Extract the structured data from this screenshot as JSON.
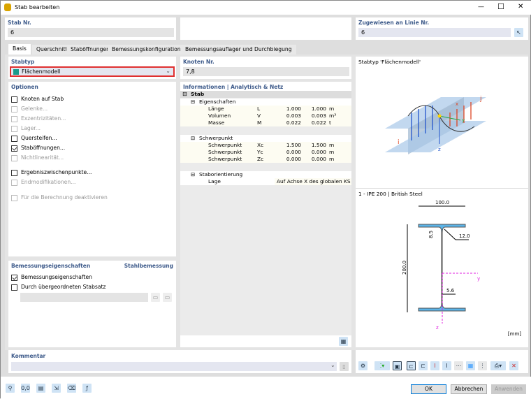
{
  "window": {
    "title": "Stab bearbeiten",
    "minimize": "—",
    "maximize": "☐",
    "close": "✕"
  },
  "stab_nr": {
    "label": "Stab Nr.",
    "value": "6"
  },
  "zugewiesen": {
    "label": "Zugewiesen an Linie Nr.",
    "value": "6"
  },
  "tabs": [
    {
      "label": "Basis"
    },
    {
      "label": "Querschnitt"
    },
    {
      "label": "Staböffnungen"
    },
    {
      "label": "Bemessungskonfigurationen"
    },
    {
      "label": "Bemessungsauflager und Durchbiegung"
    }
  ],
  "stabtyp": {
    "label": "Stabtyp",
    "value": "Flächenmodell",
    "color": "#1a9a8a",
    "highlight": "#e03030"
  },
  "knoten": {
    "label": "Knoten Nr.",
    "value": "7,8"
  },
  "optionen": {
    "label": "Optionen",
    "items": [
      {
        "label": "Knoten auf Stab",
        "checked": false,
        "enabled": true
      },
      {
        "label": "Gelenke...",
        "checked": false,
        "enabled": false
      },
      {
        "label": "Exzentrizitäten...",
        "checked": false,
        "enabled": false
      },
      {
        "label": "Lager...",
        "checked": false,
        "enabled": false
      },
      {
        "label": "Quersteifen...",
        "checked": false,
        "enabled": true
      },
      {
        "label": "Staböffnungen...",
        "checked": true,
        "enabled": true
      },
      {
        "label": "Nichtlinearität...",
        "checked": false,
        "enabled": false
      },
      {
        "label": "Ergebniszwischenpunkte...",
        "checked": false,
        "enabled": true
      },
      {
        "label": "Endmodifikationen...",
        "checked": false,
        "enabled": false
      },
      {
        "label": "Für die Berechnung deaktivieren",
        "checked": false,
        "enabled": false
      }
    ]
  },
  "bemessung": {
    "label": "Bemessungseigenschaften",
    "right": "Stahlbemessung",
    "items": [
      {
        "label": "Bemessungseigenschaften",
        "checked": true
      },
      {
        "label": "Durch übergeordneten Stabsatz",
        "checked": false
      }
    ]
  },
  "info": {
    "label": "Informationen | Analytisch & Netz",
    "root": "Stab",
    "groups": [
      {
        "name": "Eigenschaften",
        "rows": [
          [
            "Länge",
            "L",
            "1.000",
            "1.000",
            "m"
          ],
          [
            "Volumen",
            "V",
            "0.003",
            "0.003",
            "m³"
          ],
          [
            "Masse",
            "M",
            "0.022",
            "0.022",
            "t"
          ]
        ]
      },
      {
        "name": "Schwerpunkt",
        "rows": [
          [
            "Schwerpunkt",
            "Xc",
            "1.500",
            "1.500",
            "m"
          ],
          [
            "Schwerpunkt",
            "Yc",
            "0.000",
            "0.000",
            "m"
          ],
          [
            "Schwerpunkt",
            "Zc",
            "0.000",
            "0.000",
            "m"
          ]
        ]
      },
      {
        "name": "Staborientierung",
        "rows": [
          [
            "Lage",
            "",
            "Auf Achse X des globalen KS",
            "",
            ""
          ]
        ]
      }
    ]
  },
  "preview": {
    "title": "Stabtyp 'Flächenmodell'",
    "label_i": "i",
    "label_j": "j",
    "label_x": "x",
    "label_y": "y",
    "label_z": "z"
  },
  "section": {
    "title": "1 - IPE 200 | British Steel",
    "b": "100.0",
    "h": "200.0",
    "tf": "8.5",
    "r": "12.0",
    "tw": "5.6",
    "y": "y",
    "z": "z",
    "unit": "[mm]"
  },
  "kommentar": {
    "label": "Kommentar",
    "value": ""
  },
  "buttons": {
    "ok": "OK",
    "cancel": "Abbrechen",
    "apply": "Anwenden"
  }
}
